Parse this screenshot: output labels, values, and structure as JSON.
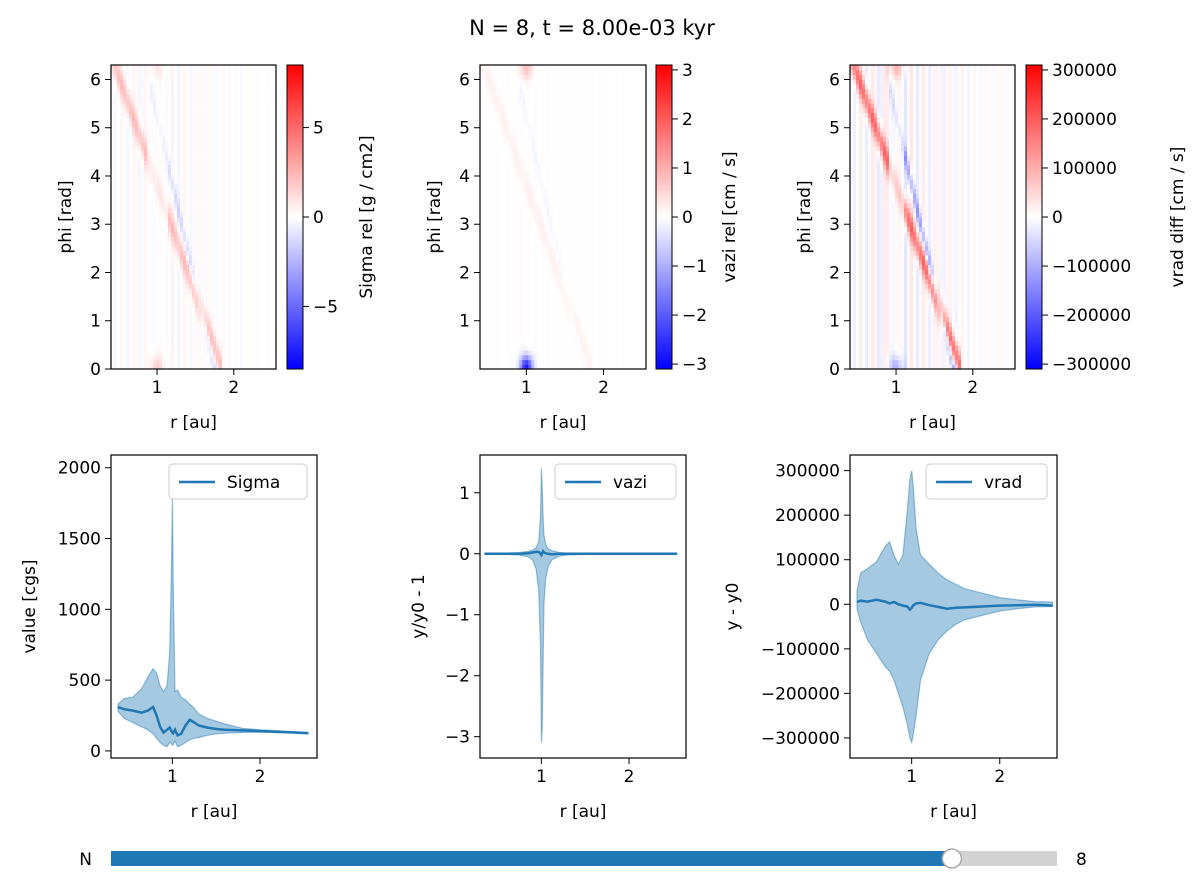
{
  "figure": {
    "title": "N = 8, t = 8.00e-03 kyr",
    "colors": {
      "line": "#1f77b4",
      "band": "#1f77b4",
      "red": "#ff0000",
      "blue": "#0000ff",
      "track": "#d3d3d3",
      "axis": "#000000"
    }
  },
  "slider": {
    "label": "N",
    "value": 8,
    "value_text": "8",
    "min": 0,
    "max": 9
  },
  "chart_data": [
    {
      "type": "heatmap",
      "id": "hm-sigma",
      "xlabel": "r [au]",
      "ylabel": "phi [rad]",
      "xlim": [
        0.4,
        2.55
      ],
      "ylim": [
        0,
        6.3
      ],
      "xticks": [
        1,
        2
      ],
      "yticks": [
        0,
        1,
        2,
        3,
        4,
        5,
        6
      ],
      "colorbar": {
        "label": "Sigma rel [g / cm2]",
        "range": [
          -8.5,
          8.5
        ],
        "ticks": [
          -5,
          0,
          5
        ],
        "tick_labels": [
          "−5",
          "0",
          "5"
        ]
      },
      "features": {
        "gap_r": [
          0.88,
          1.15
        ],
        "spiral_strength": 0.45
      }
    },
    {
      "type": "heatmap",
      "id": "hm-vazi",
      "xlabel": "r [au]",
      "ylabel": "phi [rad]",
      "xlim": [
        0.4,
        2.55
      ],
      "ylim": [
        0,
        6.3
      ],
      "xticks": [
        1,
        2
      ],
      "yticks": [
        1,
        2,
        3,
        4,
        5,
        6
      ],
      "colorbar": {
        "label": "vazi rel [cm / s]",
        "range": [
          -3.1,
          3.1
        ],
        "ticks": [
          -3,
          -2,
          -1,
          0,
          1,
          2,
          3
        ],
        "tick_labels": [
          "−3",
          "−2",
          "−1",
          "0",
          "1",
          "2",
          "3"
        ]
      },
      "features": {
        "gap_r": [
          1.0,
          1.0
        ],
        "spiral_strength": 0.1
      }
    },
    {
      "type": "heatmap",
      "id": "hm-vrad",
      "xlabel": "r [au]",
      "ylabel": "phi [rad]",
      "xlim": [
        0.4,
        2.55
      ],
      "ylim": [
        0,
        6.3
      ],
      "xticks": [
        1,
        2
      ],
      "yticks": [
        0,
        1,
        2,
        3,
        4,
        5,
        6
      ],
      "colorbar": {
        "label": "vrad diff [cm / s]",
        "range": [
          -310000,
          310000
        ],
        "ticks": [
          -300000,
          -200000,
          -100000,
          0,
          100000,
          200000,
          300000
        ],
        "tick_labels": [
          "−300000",
          "−200000",
          "−100000",
          "0",
          "100000",
          "200000",
          "300000"
        ]
      },
      "features": {
        "gap_r": [
          0.9,
          1.1
        ],
        "spiral_strength": 1.0
      }
    },
    {
      "type": "area",
      "id": "line-sigma",
      "xlabel": "r [au]",
      "ylabel": "value [cgs]",
      "xlim": [
        0.3,
        2.65
      ],
      "ylim": [
        -50,
        2090
      ],
      "xticks": [
        1,
        2
      ],
      "yticks": [
        0,
        500,
        1000,
        1500,
        2000
      ],
      "legend": "Sigma",
      "legend_position": "top-right",
      "x": [
        0.38,
        0.45,
        0.55,
        0.65,
        0.72,
        0.78,
        0.82,
        0.86,
        0.9,
        0.94,
        0.97,
        0.99,
        1.0,
        1.01,
        1.03,
        1.06,
        1.1,
        1.15,
        1.2,
        1.25,
        1.3,
        1.4,
        1.5,
        1.6,
        1.8,
        2.0,
        2.2,
        2.4,
        2.55
      ],
      "y": [
        310,
        295,
        285,
        270,
        285,
        310,
        250,
        170,
        130,
        150,
        165,
        140,
        130,
        125,
        150,
        110,
        120,
        180,
        220,
        200,
        180,
        165,
        155,
        150,
        145,
        140,
        135,
        130,
        125
      ],
      "y_low": [
        280,
        230,
        200,
        170,
        150,
        120,
        90,
        60,
        40,
        30,
        60,
        50,
        40,
        45,
        70,
        30,
        40,
        60,
        80,
        90,
        95,
        110,
        120,
        125,
        130,
        132,
        128,
        125,
        122
      ],
      "y_high": [
        330,
        370,
        380,
        440,
        520,
        580,
        550,
        460,
        420,
        460,
        700,
        1300,
        1820,
        1200,
        420,
        430,
        380,
        360,
        330,
        300,
        260,
        230,
        210,
        190,
        160,
        150,
        143,
        135,
        130
      ]
    },
    {
      "type": "area",
      "id": "line-vazi",
      "xlabel": "r [au]",
      "ylabel": "y/y0 - 1",
      "xlim": [
        0.3,
        2.65
      ],
      "ylim": [
        -3.35,
        1.62
      ],
      "xticks": [
        1,
        2
      ],
      "yticks": [
        -3,
        -2,
        -1,
        0,
        1
      ],
      "ytick_labels": [
        "−3",
        "−2",
        "−1",
        "0",
        "1"
      ],
      "legend": "vazi",
      "legend_position": "top-right",
      "x": [
        0.35,
        0.6,
        0.75,
        0.85,
        0.9,
        0.94,
        0.97,
        0.99,
        1.0,
        1.01,
        1.02,
        1.03,
        1.05,
        1.08,
        1.12,
        1.2,
        1.3,
        1.5,
        2.0,
        2.55
      ],
      "y": [
        0,
        0,
        0,
        0.01,
        0.02,
        0.03,
        0.03,
        0.0,
        -0.02,
        0.01,
        0.04,
        0.02,
        0.01,
        0.0,
        -0.01,
        0,
        0,
        0,
        0,
        0
      ],
      "y_low": [
        0,
        -0.01,
        -0.02,
        -0.05,
        -0.1,
        -0.25,
        -0.6,
        -1.5,
        -3.1,
        -2.9,
        -1.8,
        -0.8,
        -0.4,
        -0.2,
        -0.1,
        -0.04,
        -0.02,
        -0.01,
        0,
        0
      ],
      "y_high": [
        0,
        0.01,
        0.02,
        0.04,
        0.06,
        0.1,
        0.2,
        0.6,
        1.4,
        1.1,
        0.6,
        0.3,
        0.15,
        0.08,
        0.05,
        0.02,
        0.01,
        0.01,
        0,
        0
      ]
    },
    {
      "type": "area",
      "id": "line-vrad",
      "xlabel": "r [au]",
      "ylabel": "y - y0",
      "xlim": [
        0.3,
        2.65
      ],
      "ylim": [
        -345000,
        335000
      ],
      "xticks": [
        1,
        2
      ],
      "yticks": [
        -300000,
        -200000,
        -100000,
        0,
        100000,
        200000,
        300000
      ],
      "ytick_labels": [
        "−300000",
        "−200000",
        "−100000",
        "0",
        "100000",
        "200000",
        "300000"
      ],
      "legend": "vrad",
      "legend_position": "top-right",
      "x": [
        0.38,
        0.42,
        0.5,
        0.6,
        0.7,
        0.75,
        0.8,
        0.85,
        0.9,
        0.95,
        0.98,
        1.0,
        1.02,
        1.05,
        1.1,
        1.2,
        1.3,
        1.4,
        1.5,
        1.6,
        1.8,
        2.0,
        2.2,
        2.4,
        2.6
      ],
      "y": [
        5000,
        8000,
        6000,
        10000,
        6000,
        2000,
        5000,
        0,
        -3000,
        -5000,
        -12000,
        -8000,
        -2000,
        2000,
        3000,
        -2000,
        -6000,
        -10000,
        -8000,
        -7000,
        -5000,
        -3000,
        -2000,
        -1000,
        -3000
      ],
      "y_low": [
        -10000,
        -40000,
        -80000,
        -110000,
        -140000,
        -150000,
        -170000,
        -200000,
        -230000,
        -270000,
        -300000,
        -310000,
        -290000,
        -250000,
        -170000,
        -110000,
        -80000,
        -60000,
        -45000,
        -35000,
        -25000,
        -15000,
        -10000,
        -6000,
        -5000
      ],
      "y_high": [
        30000,
        70000,
        80000,
        95000,
        130000,
        140000,
        110000,
        90000,
        110000,
        210000,
        280000,
        300000,
        260000,
        170000,
        110000,
        90000,
        70000,
        55000,
        45000,
        35000,
        25000,
        15000,
        10000,
        6000,
        5000
      ]
    }
  ]
}
